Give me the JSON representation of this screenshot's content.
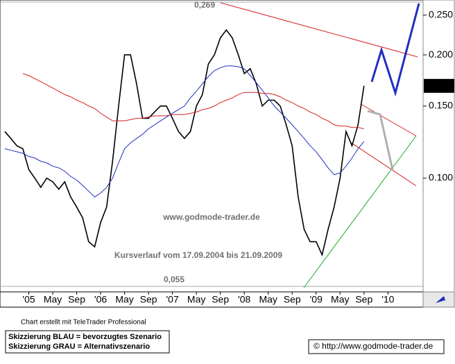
{
  "chart_data": {
    "type": "line",
    "y_log": true,
    "ylim": [
      0.053,
      0.269
    ],
    "yticks": [
      {
        "value": 0.1,
        "label": "0.100"
      },
      {
        "value": 0.15,
        "label": "0.150"
      },
      {
        "value": 0.2,
        "label": "0.200"
      },
      {
        "value": 0.25,
        "label": "0.250"
      }
    ],
    "x": [
      "2004-09",
      "2004-10",
      "2004-11",
      "2004-12",
      "2005-01",
      "2005-02",
      "2005-03",
      "2005-04",
      "2005-05",
      "2005-06",
      "2005-07",
      "2005-08",
      "2005-09",
      "2005-10",
      "2005-11",
      "2005-12",
      "2006-01",
      "2006-02",
      "2006-03",
      "2006-04",
      "2006-05",
      "2006-06",
      "2006-07",
      "2006-08",
      "2006-09",
      "2006-10",
      "2006-11",
      "2006-12",
      "2007-01",
      "2007-02",
      "2007-03",
      "2007-04",
      "2007-05",
      "2007-06",
      "2007-07",
      "2007-08",
      "2007-09",
      "2007-10",
      "2007-11",
      "2007-12",
      "2008-01",
      "2008-02",
      "2008-03",
      "2008-04",
      "2008-05",
      "2008-06",
      "2008-07",
      "2008-08",
      "2008-09",
      "2008-10",
      "2008-11",
      "2008-12",
      "2009-01",
      "2009-02",
      "2009-03",
      "2009-04",
      "2009-05",
      "2009-06",
      "2009-07",
      "2009-08",
      "2009-09"
    ],
    "xticks": [
      {
        "value": "2005-01",
        "label": "'05"
      },
      {
        "value": "2005-05",
        "label": "May"
      },
      {
        "value": "2005-09",
        "label": "Sep"
      },
      {
        "value": "2006-01",
        "label": "'06"
      },
      {
        "value": "2006-05",
        "label": "May"
      },
      {
        "value": "2006-09",
        "label": "Sep"
      },
      {
        "value": "2007-01",
        "label": "'07"
      },
      {
        "value": "2007-05",
        "label": "May"
      },
      {
        "value": "2007-09",
        "label": "Sep"
      },
      {
        "value": "2008-01",
        "label": "'08"
      },
      {
        "value": "2008-05",
        "label": "May"
      },
      {
        "value": "2008-09",
        "label": "Sep"
      },
      {
        "value": "2009-01",
        "label": "'09"
      },
      {
        "value": "2009-05",
        "label": "May"
      },
      {
        "value": "2009-09",
        "label": "Sep"
      },
      {
        "value": "2010-01",
        "label": "'10"
      }
    ],
    "series": [
      {
        "color": "#000000",
        "values": [
          0.13,
          0.125,
          0.12,
          0.118,
          0.105,
          0.1,
          0.095,
          0.1,
          0.098,
          0.094,
          0.098,
          0.09,
          0.085,
          0.08,
          0.07,
          0.068,
          0.078,
          0.085,
          0.11,
          0.15,
          0.2,
          0.2,
          0.17,
          0.14,
          0.14,
          0.145,
          0.15,
          0.15,
          0.14,
          0.13,
          0.125,
          0.13,
          0.15,
          0.16,
          0.19,
          0.2,
          0.22,
          0.23,
          0.22,
          0.2,
          0.18,
          0.185,
          0.17,
          0.15,
          0.155,
          0.155,
          0.15,
          0.135,
          0.12,
          0.09,
          0.075,
          0.07,
          0.07,
          0.065,
          0.075,
          0.085,
          0.1,
          0.13,
          0.12,
          0.135,
          0.168
        ]
      },
      {
        "color": "#1f2fbf",
        "values": [
          0.118,
          0.117,
          0.116,
          0.115,
          0.113,
          0.112,
          0.11,
          0.109,
          0.107,
          0.106,
          0.104,
          0.101,
          0.099,
          0.096,
          0.093,
          0.09,
          0.092,
          0.095,
          0.1,
          0.109,
          0.118,
          0.122,
          0.125,
          0.128,
          0.132,
          0.135,
          0.138,
          0.141,
          0.144,
          0.147,
          0.15,
          0.157,
          0.163,
          0.17,
          0.177,
          0.183,
          0.186,
          0.188,
          0.188,
          0.187,
          0.185,
          0.178,
          0.171,
          0.164,
          0.157,
          0.15,
          0.145,
          0.14,
          0.135,
          0.13,
          0.125,
          0.12,
          0.116,
          0.111,
          0.106,
          0.102,
          0.103,
          0.107,
          0.112,
          0.118,
          0.123
        ]
      },
      {
        "color": "#d42020",
        "values": [
          null,
          null,
          null,
          0.18,
          0.178,
          0.175,
          0.172,
          0.169,
          0.166,
          0.163,
          0.16,
          0.158,
          0.155,
          0.153,
          0.15,
          0.148,
          0.144,
          0.141,
          0.138,
          0.138,
          0.138,
          0.139,
          0.14,
          0.14,
          0.141,
          0.142,
          0.142,
          0.142,
          0.143,
          0.143,
          0.143,
          0.144,
          0.145,
          0.147,
          0.148,
          0.15,
          0.153,
          0.155,
          0.157,
          0.16,
          0.162,
          0.162,
          0.162,
          0.161,
          0.161,
          0.16,
          0.158,
          0.155,
          0.153,
          0.15,
          0.148,
          0.145,
          0.143,
          0.14,
          0.138,
          0.135,
          0.134,
          0.134,
          0.133,
          0.133,
          0.132
        ]
      }
    ],
    "high_label": "0,269",
    "low_label": "0,055",
    "last_label": "0.168",
    "watermark": "www.godmode-trader.de",
    "period_note": "Kursverlauf vom 17.09.2004 bis 21.09.2009",
    "credit": "Chart erstellt mit TeleTrader Professional",
    "legend_lines": [
      "Skizzierung BLAU = bevorzugtes Szenario",
      "Skizzierung GRAU = Alternativszenario"
    ],
    "copyright": "© http://www.godmode-trader.de"
  }
}
